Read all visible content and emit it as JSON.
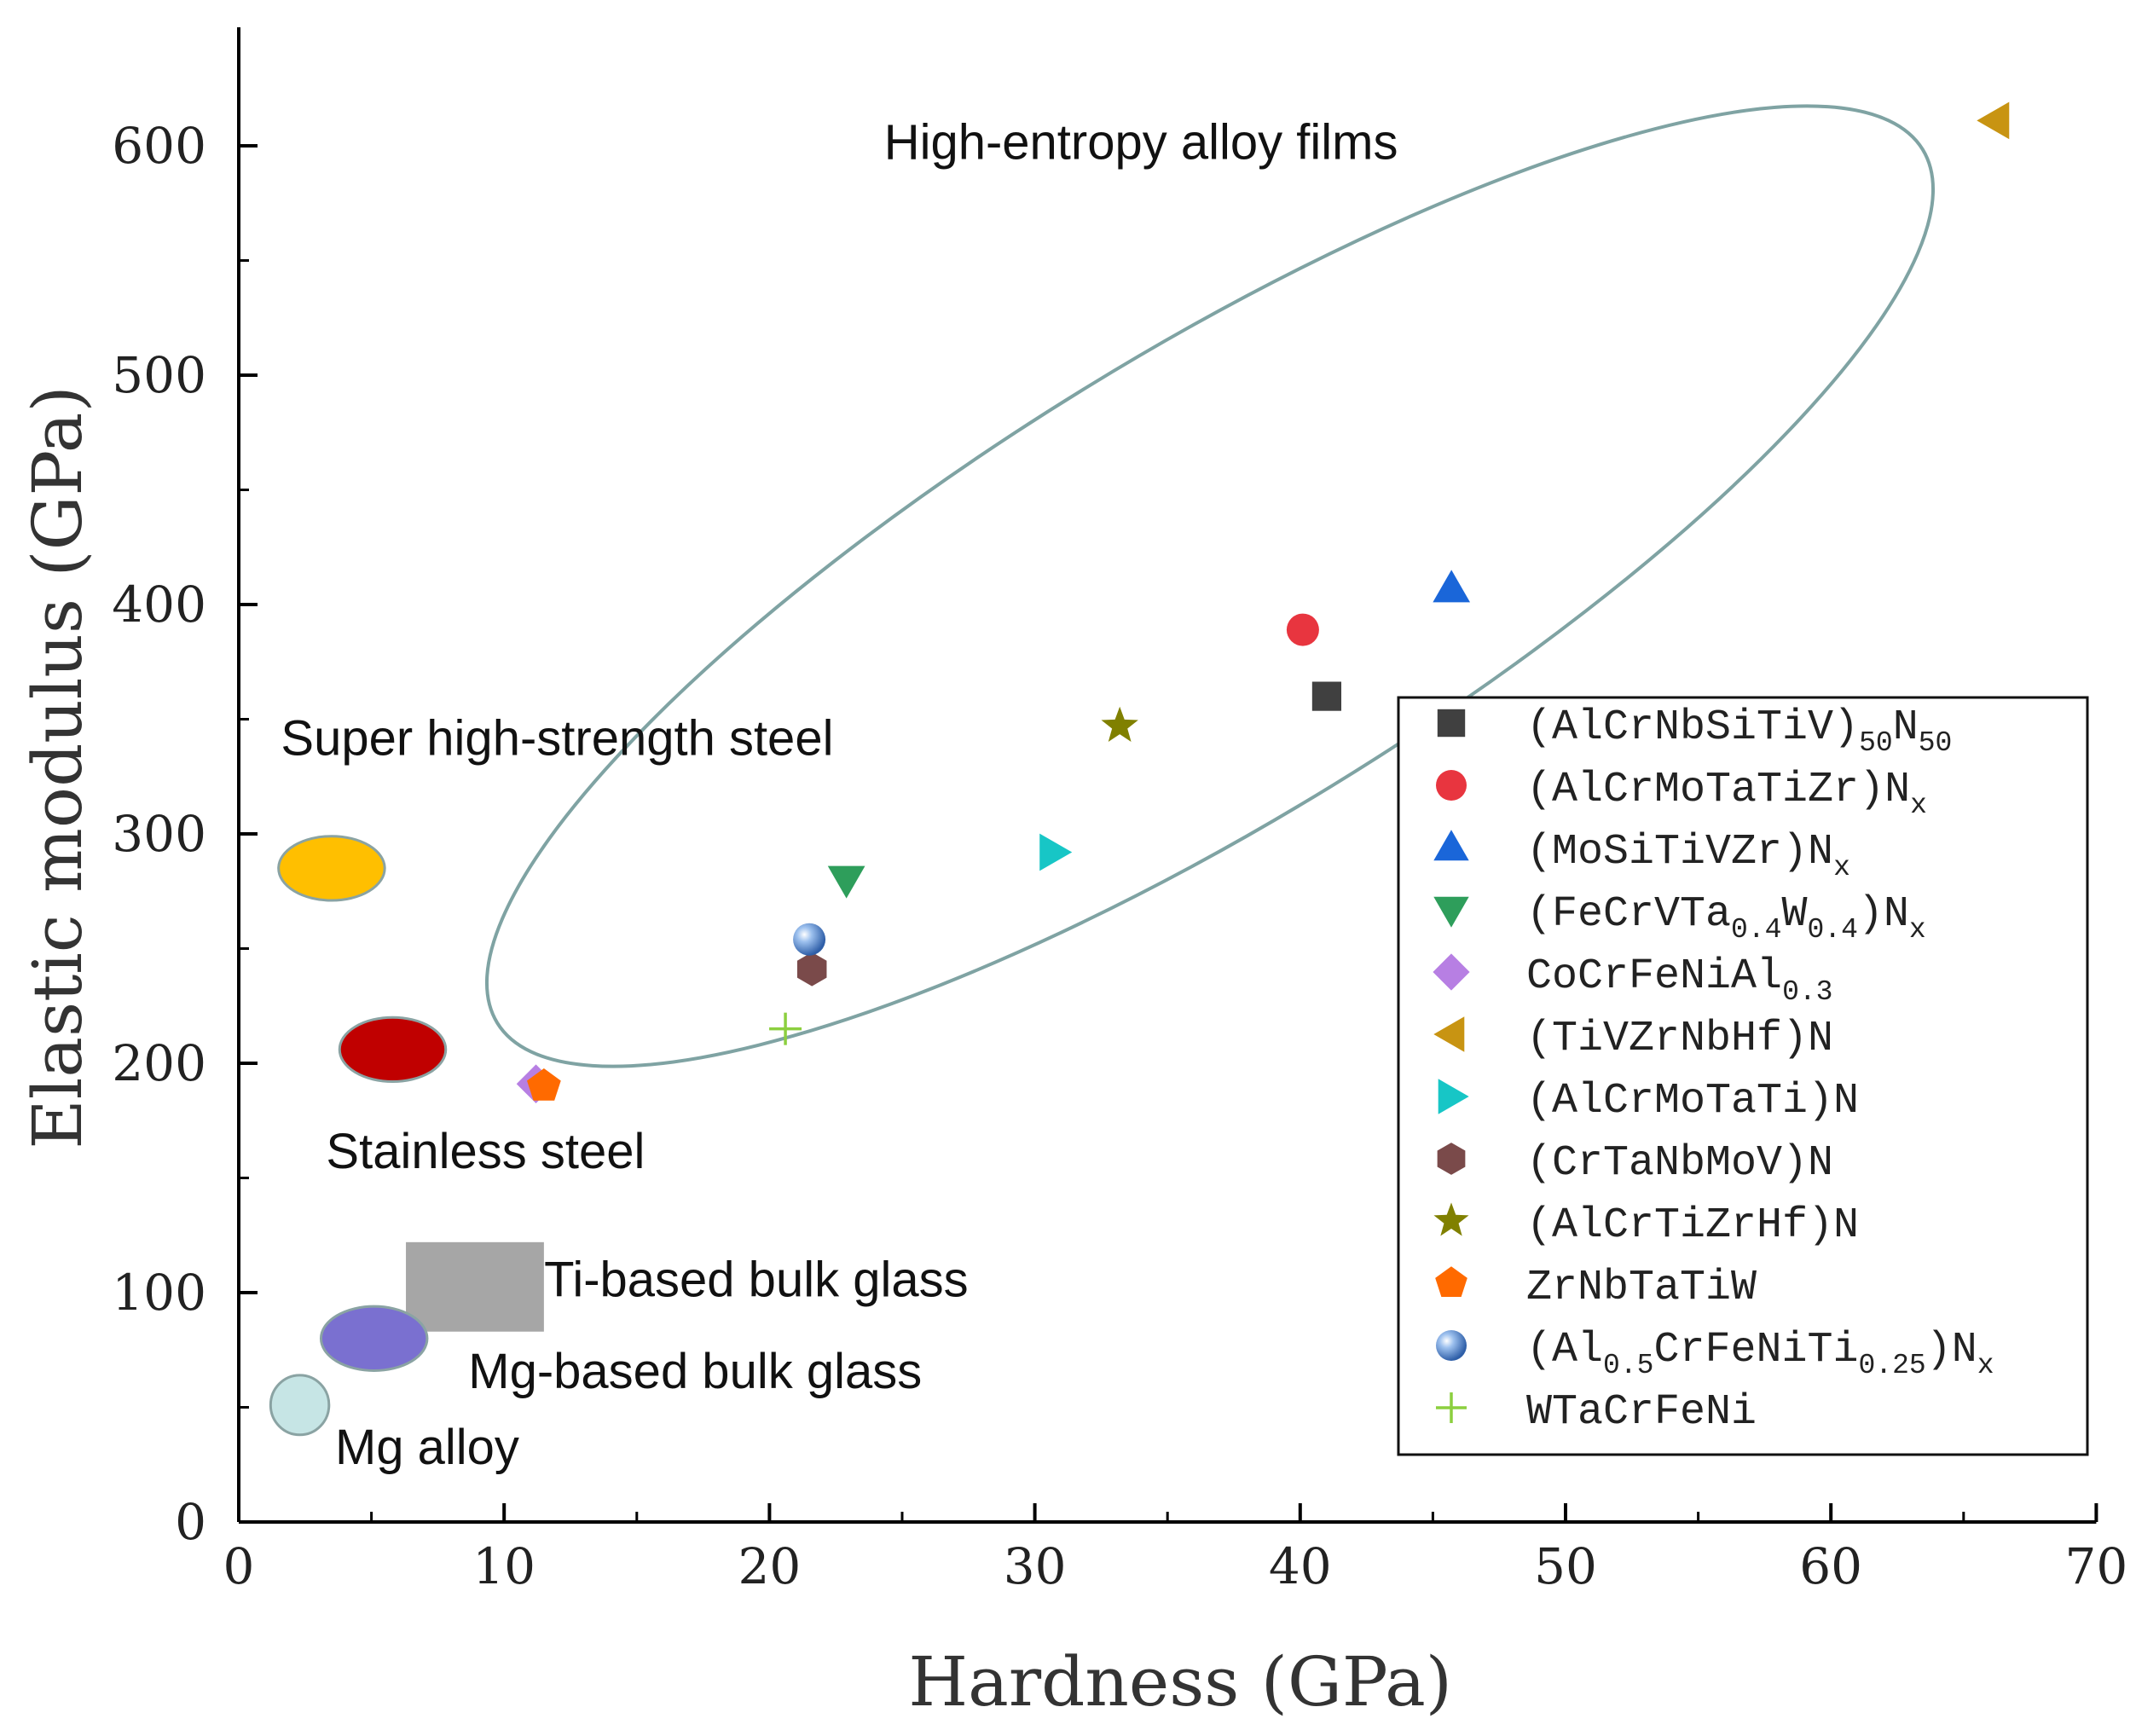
{
  "chart_data": {
    "type": "scatter",
    "xlabel": "Hardness (GPa)",
    "ylabel": "Elastic modulus (GPa)",
    "xlim": [
      0,
      70
    ],
    "ylim": [
      0,
      650
    ],
    "xticks": [
      0,
      10,
      20,
      30,
      40,
      50,
      60,
      70
    ],
    "yticks": [
      0,
      100,
      200,
      300,
      400,
      500,
      600
    ],
    "grid": false,
    "legend_position": "right",
    "series": [
      {
        "name": "(AlCrNbSiTiV)50N50",
        "label": {
          "pre": "(AlCrNbSiTiV)",
          "sub": "50",
          "mid": "N",
          "sub2": "50",
          "post": ""
        },
        "marker": "square",
        "color": "#404040",
        "x": 41,
        "y": 360
      },
      {
        "name": "(AlCrMoTaTiZr)Nx",
        "label": {
          "pre": "(AlCrMoTaTiZr)N",
          "sub": "x",
          "mid": "",
          "sub2": "",
          "post": ""
        },
        "marker": "circle",
        "color": "#e8353f",
        "x": 40.1,
        "y": 389
      },
      {
        "name": "(MoSiTiVZr)Nx",
        "label": {
          "pre": "(MoSiTiVZr)N",
          "sub": "x",
          "mid": "",
          "sub2": "",
          "post": ""
        },
        "marker": "triangle-up",
        "color": "#1a66d9",
        "x": 45.7,
        "y": 407
      },
      {
        "name": "(FeCrVTa0.4W0.4)Nx",
        "label": {
          "pre": "(FeCrVTa",
          "sub": "0.4",
          "mid": "W",
          "sub2": "0.4",
          "post": ")N",
          "sub3": "x"
        },
        "marker": "triangle-down",
        "color": "#2e9e5b",
        "x": 22.9,
        "y": 280
      },
      {
        "name": "CoCrFeNiAl0.3",
        "label": {
          "pre": "CoCrFeNiAl",
          "sub": "0.3",
          "mid": "",
          "sub2": "",
          "post": ""
        },
        "marker": "diamond",
        "color": "#b77fe3",
        "x": 11.2,
        "y": 191
      },
      {
        "name": "(TiVZrNbHf)N",
        "label": {
          "pre": "(TiVZrNbHf)N",
          "sub": "",
          "mid": "",
          "sub2": "",
          "post": ""
        },
        "marker": "triangle-left",
        "color": "#c89412",
        "x": 66.2,
        "y": 611
      },
      {
        "name": "(AlCrMoTaTi)N",
        "label": {
          "pre": "(AlCrMoTaTi)N",
          "sub": "",
          "mid": "",
          "sub2": "",
          "post": ""
        },
        "marker": "triangle-right",
        "color": "#17c6c6",
        "x": 30.7,
        "y": 292
      },
      {
        "name": "(CrTaNbMoV)N",
        "label": {
          "pre": "(CrTaNbMoV)N",
          "sub": "",
          "mid": "",
          "sub2": "",
          "post": ""
        },
        "marker": "hexagon",
        "color": "#7a4a4a",
        "x": 21.6,
        "y": 241
      },
      {
        "name": "(AlCrTiZrHf)N",
        "label": {
          "pre": "(AlCrTiZrHf)N",
          "sub": "",
          "mid": "",
          "sub2": "",
          "post": ""
        },
        "marker": "star",
        "color": "#808000",
        "x": 33.2,
        "y": 347
      },
      {
        "name": "ZrNbTaTiW",
        "label": {
          "pre": "ZrNbTaTiW",
          "sub": "",
          "mid": "",
          "sub2": "",
          "post": ""
        },
        "marker": "pentagon",
        "color": "#ff6a00",
        "x": 11.5,
        "y": 190
      },
      {
        "name": "(Al0.5CrFeNiTi0.25)Nx",
        "label": {
          "pre": "(Al",
          "sub": "0.5",
          "mid": "CrFeNiTi",
          "sub2": "0.25",
          "post": ")N",
          "sub3": "x"
        },
        "marker": "sphere",
        "color": "#5b8fd6",
        "x": 21.5,
        "y": 254
      },
      {
        "name": "WTaCrFeNi",
        "label": {
          "pre": "WTaCrFeNi",
          "sub": "",
          "mid": "",
          "sub2": "",
          "post": ""
        },
        "marker": "plus",
        "color": "#8ccf3f",
        "x": 20.6,
        "y": 215
      }
    ],
    "regions": [
      {
        "name": "High-entropy alloy films",
        "shape": "ellipse-outline",
        "color": "#7fa3a3",
        "cx": 36.6,
        "cy": 408,
        "rx": 31.5,
        "ry": 102,
        "angle": -31.5,
        "label_x": 34,
        "label_y": 600
      },
      {
        "name": "Super high-strength steel",
        "shape": "ellipse",
        "color": "#ffbf00",
        "cx": 3.5,
        "cy": 285,
        "rx": 2.0,
        "ry": 14,
        "label_x": 12,
        "label_y": 340
      },
      {
        "name": "Stainless steel",
        "shape": "ellipse",
        "color": "#c00000",
        "cx": 5.8,
        "cy": 206,
        "rx": 2.0,
        "ry": 14,
        "label_x": 9.3,
        "label_y": 160
      },
      {
        "name": "Ti-based bulk glass",
        "shape": "rect",
        "color": "#a6a6a6",
        "x0": 6.3,
        "x1": 11.5,
        "y0": 83,
        "y1": 122,
        "label_x": 19.5,
        "label_y": 104
      },
      {
        "name": "Mg-based bulk glass",
        "shape": "ellipse",
        "color": "#7a70d0",
        "cx": 5.1,
        "cy": 80,
        "rx": 2.0,
        "ry": 14,
        "label_x": 17.2,
        "label_y": 64
      },
      {
        "name": "Mg alloy",
        "shape": "ellipse",
        "color": "#c6e5e5",
        "cx": 2.3,
        "cy": 51,
        "rx": 1.1,
        "ry": 13,
        "label_x": 7.1,
        "label_y": 31
      }
    ]
  }
}
